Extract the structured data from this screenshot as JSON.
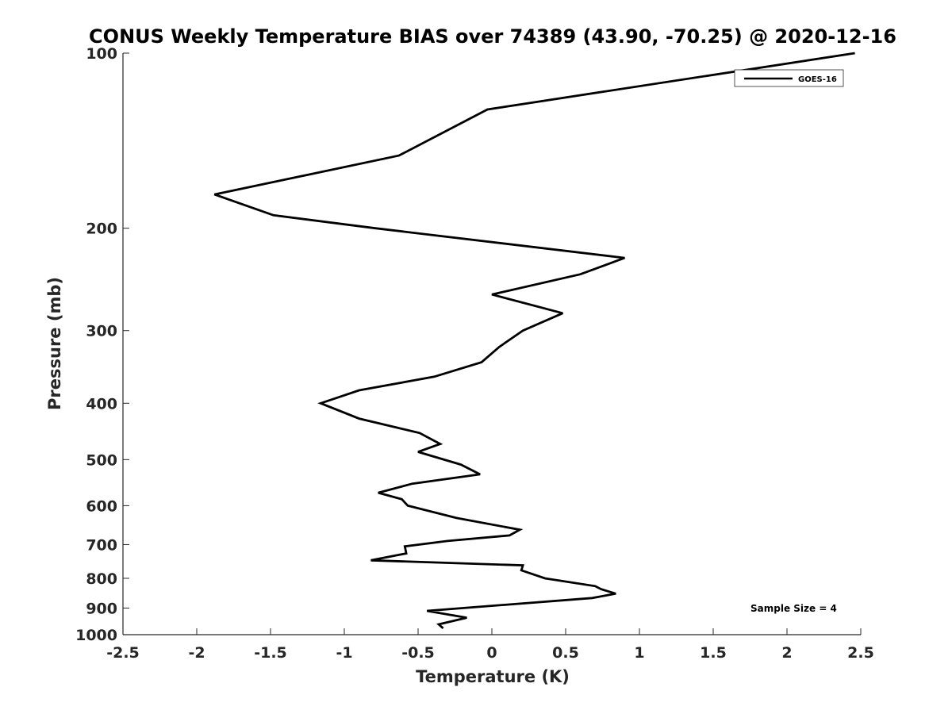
{
  "chart_data": {
    "type": "line",
    "title": "CONUS Weekly Temperature BIAS over 74389 (43.90, -70.25) @ 2020-12-16",
    "xlabel": "Temperature (K)",
    "ylabel": "Pressure (mb)",
    "xlim": [
      -2.5,
      2.5
    ],
    "ylim": [
      100,
      1000
    ],
    "y_scale": "log",
    "y_reversed": true,
    "grid": false,
    "legend_position": "top-right",
    "x_ticks": [
      -2.5,
      -2,
      -1.5,
      -1,
      -0.5,
      0,
      0.5,
      1,
      1.5,
      2,
      2.5
    ],
    "x_tick_labels": [
      "-2.5",
      "-2",
      "-1.5",
      "-1",
      "-0.5",
      "0",
      "0.5",
      "1",
      "1.5",
      "2",
      "2.5"
    ],
    "y_ticks": [
      100,
      200,
      300,
      400,
      500,
      600,
      700,
      800,
      900,
      1000
    ],
    "y_tick_labels": [
      "100",
      "200",
      "300",
      "400",
      "500",
      "600",
      "700",
      "800",
      "900",
      "1000"
    ],
    "series": [
      {
        "name": "GOES-16",
        "color": "#000000",
        "points": [
          [
            2.46,
            100
          ],
          [
            -0.03,
            125
          ],
          [
            -0.63,
            150
          ],
          [
            -1.88,
            175
          ],
          [
            -1.48,
            190
          ],
          [
            -0.79,
            200
          ],
          [
            0.9,
            225
          ],
          [
            0.6,
            240
          ],
          [
            0.0,
            260
          ],
          [
            0.48,
            280
          ],
          [
            0.21,
            300
          ],
          [
            0.05,
            320
          ],
          [
            -0.07,
            340
          ],
          [
            -0.39,
            360
          ],
          [
            -0.9,
            380
          ],
          [
            -1.16,
            400
          ],
          [
            -0.9,
            425
          ],
          [
            -0.49,
            450
          ],
          [
            -0.35,
            470
          ],
          [
            -0.5,
            485
          ],
          [
            -0.21,
            510
          ],
          [
            -0.08,
            530
          ],
          [
            -0.54,
            550
          ],
          [
            -0.77,
            570
          ],
          [
            -0.61,
            585
          ],
          [
            -0.57,
            600
          ],
          [
            -0.24,
            630
          ],
          [
            0.19,
            660
          ],
          [
            0.12,
            675
          ],
          [
            -0.3,
            690
          ],
          [
            -0.59,
            705
          ],
          [
            -0.58,
            725
          ],
          [
            -0.82,
            745
          ],
          [
            0.21,
            760
          ],
          [
            0.2,
            775
          ],
          [
            0.36,
            800
          ],
          [
            0.7,
            825
          ],
          [
            0.74,
            835
          ],
          [
            0.84,
            850
          ],
          [
            0.68,
            865
          ],
          [
            -0.44,
            910
          ],
          [
            -0.17,
            935
          ],
          [
            -0.36,
            960
          ],
          [
            -0.33,
            975
          ]
        ]
      }
    ],
    "annotation": "Sample Size = 4"
  }
}
